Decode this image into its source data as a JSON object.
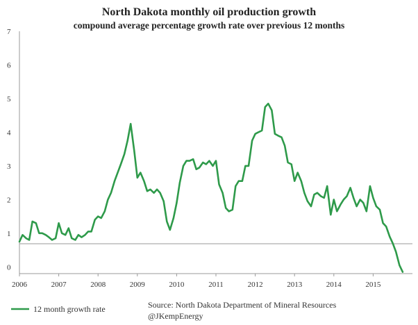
{
  "chart_data": {
    "type": "line",
    "title": "North Dakota monthly oil production growth",
    "subtitle": "compound average percentage growth rate over previous 12 months",
    "xlabel": "",
    "ylabel": "",
    "xlim": [
      2006,
      2016
    ],
    "ylim": [
      -0.2,
      7
    ],
    "y_ticks": [
      0,
      1,
      2,
      3,
      4,
      5,
      6,
      7
    ],
    "y_tick_labels": [
      "0",
      "1",
      "2",
      "3",
      "4",
      "5",
      "6",
      "7"
    ],
    "x_ticks": [
      2006,
      2007,
      2008,
      2009,
      2010,
      2011,
      2012,
      2013,
      2014,
      2015
    ],
    "x_tick_labels": [
      "2006",
      "2007",
      "2008",
      "2009",
      "2010",
      "2011",
      "2012",
      "2013",
      "2014",
      "2015"
    ],
    "grid": false,
    "legend_position": "bottom-left",
    "line_color": "#2e9a4a",
    "series": [
      {
        "name": "12 month growth rate",
        "x": [
          2006.0,
          2006.08,
          2006.17,
          2006.25,
          2006.33,
          2006.42,
          2006.5,
          2006.58,
          2006.67,
          2006.75,
          2006.83,
          2006.92,
          2007.0,
          2007.08,
          2007.17,
          2007.25,
          2007.33,
          2007.42,
          2007.5,
          2007.58,
          2007.67,
          2007.75,
          2007.83,
          2007.92,
          2008.0,
          2008.08,
          2008.17,
          2008.25,
          2008.33,
          2008.42,
          2008.5,
          2008.58,
          2008.67,
          2008.75,
          2008.83,
          2008.92,
          2009.0,
          2009.08,
          2009.17,
          2009.25,
          2009.33,
          2009.42,
          2009.5,
          2009.58,
          2009.67,
          2009.75,
          2009.83,
          2009.92,
          2010.0,
          2010.08,
          2010.17,
          2010.25,
          2010.33,
          2010.42,
          2010.5,
          2010.58,
          2010.67,
          2010.75,
          2010.83,
          2010.92,
          2011.0,
          2011.08,
          2011.17,
          2011.25,
          2011.33,
          2011.42,
          2011.5,
          2011.58,
          2011.67,
          2011.75,
          2011.83,
          2011.92,
          2012.0,
          2012.08,
          2012.17,
          2012.25,
          2012.33,
          2012.42,
          2012.5,
          2012.58,
          2012.67,
          2012.75,
          2012.83,
          2012.92,
          2013.0,
          2013.08,
          2013.17,
          2013.25,
          2013.33,
          2013.42,
          2013.5,
          2013.58,
          2013.67,
          2013.75,
          2013.83,
          2013.92,
          2014.0,
          2014.08,
          2014.17,
          2014.25,
          2014.33,
          2014.42,
          2014.5,
          2014.58,
          2014.67,
          2014.75,
          2014.83,
          2014.92,
          2015.0,
          2015.08,
          2015.17,
          2015.25,
          2015.33,
          2015.42,
          2015.5,
          2015.58,
          2015.67,
          2015.75
        ],
        "values": [
          0.75,
          0.95,
          0.85,
          0.8,
          1.35,
          1.3,
          1.0,
          1.0,
          0.95,
          0.88,
          0.8,
          0.85,
          1.3,
          1.0,
          0.95,
          1.15,
          0.85,
          0.8,
          0.95,
          0.88,
          0.95,
          1.05,
          1.05,
          1.4,
          1.5,
          1.45,
          1.65,
          2.0,
          2.2,
          2.55,
          2.8,
          3.05,
          3.35,
          3.75,
          4.25,
          3.45,
          2.65,
          2.8,
          2.55,
          2.25,
          2.3,
          2.2,
          2.3,
          2.2,
          1.95,
          1.35,
          1.1,
          1.45,
          1.9,
          2.5,
          3.0,
          3.15,
          3.15,
          3.2,
          2.9,
          2.95,
          3.1,
          3.05,
          3.15,
          3.0,
          3.15,
          2.45,
          2.2,
          1.75,
          1.65,
          1.7,
          2.4,
          2.55,
          2.55,
          3.0,
          3.0,
          3.75,
          3.95,
          4.0,
          4.05,
          4.75,
          4.85,
          4.65,
          3.95,
          3.9,
          3.85,
          3.6,
          3.1,
          3.05,
          2.55,
          2.8,
          2.55,
          2.2,
          1.95,
          1.8,
          2.15,
          2.2,
          2.1,
          2.05,
          2.4,
          1.55,
          2.0,
          1.65,
          1.85,
          2.0,
          2.1,
          2.35,
          2.05,
          1.8,
          2.0,
          1.9,
          1.65,
          2.4,
          2.05,
          1.8,
          1.7,
          1.3,
          1.2,
          0.9,
          0.7,
          0.45,
          0.05,
          -0.15
        ]
      }
    ]
  },
  "legend": {
    "label": "12 month growth rate"
  },
  "source": {
    "line1": "Source: North Dakota Department of Mineral Resources",
    "line2": "@JKempEnergy"
  }
}
